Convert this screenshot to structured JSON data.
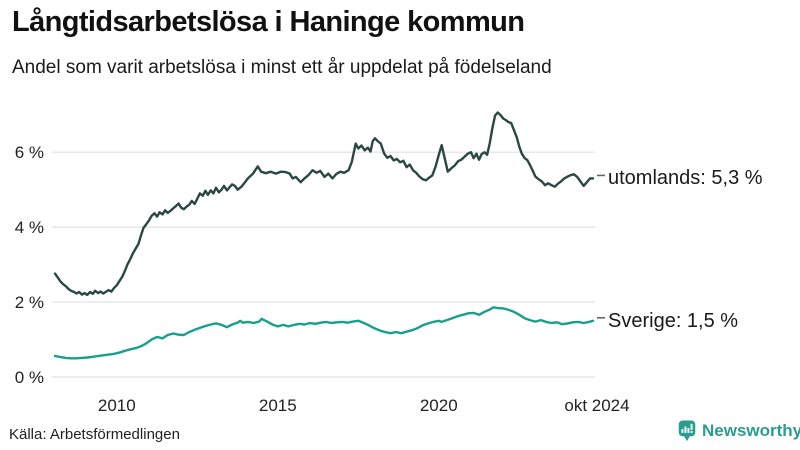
{
  "header": {
    "title": "Långtidsarbetslösa i Haninge kommun",
    "subtitle": "Andel som varit arbetslösa i minst ett år uppdelat på födelseland"
  },
  "chart_data": {
    "type": "line",
    "title": "Långtidsarbetslösa i Haninge kommun",
    "subtitle": "Andel som varit arbetslösa i minst ett år uppdelat på födelseland",
    "xlabel": "",
    "ylabel": "",
    "unit": "%",
    "xlim": [
      2008.08,
      2024.79
    ],
    "ylim": [
      0,
      7.3
    ],
    "grid": "horizontal-only",
    "legend_position": "right-of-line-end",
    "yticks": [
      {
        "label": "0 %",
        "value": 0
      },
      {
        "label": "2 %",
        "value": 2
      },
      {
        "label": "4 %",
        "value": 4
      },
      {
        "label": "6 %",
        "value": 6
      }
    ],
    "xticks": [
      {
        "label": "2010",
        "value": 2010
      },
      {
        "label": "2015",
        "value": 2015
      },
      {
        "label": "2020",
        "value": 2020
      },
      {
        "label": "okt 2024",
        "value": 2024.79
      }
    ],
    "series": [
      {
        "name": "utomlands",
        "label": "utomlands: 5,3 %",
        "last_value": 5.3,
        "color": "#2b4742",
        "points": [
          [
            2008.08,
            2.76
          ],
          [
            2008.17,
            2.65
          ],
          [
            2008.25,
            2.55
          ],
          [
            2008.33,
            2.48
          ],
          [
            2008.42,
            2.42
          ],
          [
            2008.5,
            2.35
          ],
          [
            2008.58,
            2.3
          ],
          [
            2008.67,
            2.27
          ],
          [
            2008.75,
            2.23
          ],
          [
            2008.83,
            2.27
          ],
          [
            2008.92,
            2.2
          ],
          [
            2009.0,
            2.24
          ],
          [
            2009.08,
            2.19
          ],
          [
            2009.17,
            2.27
          ],
          [
            2009.25,
            2.22
          ],
          [
            2009.33,
            2.3
          ],
          [
            2009.42,
            2.24
          ],
          [
            2009.5,
            2.28
          ],
          [
            2009.58,
            2.23
          ],
          [
            2009.67,
            2.28
          ],
          [
            2009.75,
            2.32
          ],
          [
            2009.83,
            2.28
          ],
          [
            2009.92,
            2.38
          ],
          [
            2010.0,
            2.45
          ],
          [
            2010.08,
            2.56
          ],
          [
            2010.17,
            2.68
          ],
          [
            2010.25,
            2.83
          ],
          [
            2010.33,
            3.0
          ],
          [
            2010.42,
            3.15
          ],
          [
            2010.5,
            3.3
          ],
          [
            2010.58,
            3.42
          ],
          [
            2010.67,
            3.55
          ],
          [
            2010.75,
            3.78
          ],
          [
            2010.83,
            3.98
          ],
          [
            2010.92,
            4.08
          ],
          [
            2011.0,
            4.18
          ],
          [
            2011.08,
            4.3
          ],
          [
            2011.17,
            4.37
          ],
          [
            2011.25,
            4.28
          ],
          [
            2011.33,
            4.4
          ],
          [
            2011.42,
            4.34
          ],
          [
            2011.5,
            4.45
          ],
          [
            2011.58,
            4.38
          ],
          [
            2011.67,
            4.44
          ],
          [
            2011.75,
            4.5
          ],
          [
            2011.83,
            4.56
          ],
          [
            2011.92,
            4.63
          ],
          [
            2012.0,
            4.52
          ],
          [
            2012.08,
            4.48
          ],
          [
            2012.17,
            4.55
          ],
          [
            2012.25,
            4.6
          ],
          [
            2012.33,
            4.7
          ],
          [
            2012.42,
            4.62
          ],
          [
            2012.5,
            4.76
          ],
          [
            2012.58,
            4.9
          ],
          [
            2012.67,
            4.84
          ],
          [
            2012.75,
            4.97
          ],
          [
            2012.83,
            4.86
          ],
          [
            2012.92,
            4.98
          ],
          [
            2013.0,
            4.9
          ],
          [
            2013.08,
            5.05
          ],
          [
            2013.17,
            4.93
          ],
          [
            2013.25,
            5.0
          ],
          [
            2013.33,
            5.1
          ],
          [
            2013.42,
            4.98
          ],
          [
            2013.5,
            5.06
          ],
          [
            2013.58,
            5.14
          ],
          [
            2013.67,
            5.1
          ],
          [
            2013.75,
            5.0
          ],
          [
            2013.87,
            5.08
          ],
          [
            2013.98,
            5.2
          ],
          [
            2014.07,
            5.3
          ],
          [
            2014.23,
            5.43
          ],
          [
            2014.38,
            5.62
          ],
          [
            2014.48,
            5.48
          ],
          [
            2014.63,
            5.44
          ],
          [
            2014.78,
            5.48
          ],
          [
            2014.94,
            5.43
          ],
          [
            2015.09,
            5.48
          ],
          [
            2015.25,
            5.47
          ],
          [
            2015.37,
            5.43
          ],
          [
            2015.46,
            5.3
          ],
          [
            2015.56,
            5.34
          ],
          [
            2015.71,
            5.2
          ],
          [
            2015.83,
            5.3
          ],
          [
            2015.95,
            5.39
          ],
          [
            2016.08,
            5.52
          ],
          [
            2016.2,
            5.45
          ],
          [
            2016.32,
            5.5
          ],
          [
            2016.45,
            5.34
          ],
          [
            2016.57,
            5.43
          ],
          [
            2016.7,
            5.3
          ],
          [
            2016.82,
            5.42
          ],
          [
            2016.94,
            5.48
          ],
          [
            2017.06,
            5.45
          ],
          [
            2017.2,
            5.52
          ],
          [
            2017.3,
            5.74
          ],
          [
            2017.42,
            6.23
          ],
          [
            2017.5,
            6.1
          ],
          [
            2017.6,
            6.18
          ],
          [
            2017.7,
            6.05
          ],
          [
            2017.8,
            6.12
          ],
          [
            2017.88,
            6.02
          ],
          [
            2017.95,
            6.3
          ],
          [
            2018.02,
            6.37
          ],
          [
            2018.1,
            6.3
          ],
          [
            2018.2,
            6.23
          ],
          [
            2018.3,
            5.97
          ],
          [
            2018.4,
            5.85
          ],
          [
            2018.5,
            5.9
          ],
          [
            2018.6,
            5.78
          ],
          [
            2018.7,
            5.82
          ],
          [
            2018.8,
            5.73
          ],
          [
            2018.9,
            5.77
          ],
          [
            2019.0,
            5.6
          ],
          [
            2019.1,
            5.67
          ],
          [
            2019.2,
            5.52
          ],
          [
            2019.3,
            5.45
          ],
          [
            2019.4,
            5.35
          ],
          [
            2019.5,
            5.28
          ],
          [
            2019.6,
            5.25
          ],
          [
            2019.7,
            5.32
          ],
          [
            2019.8,
            5.38
          ],
          [
            2019.9,
            5.62
          ],
          [
            2020.0,
            5.93
          ],
          [
            2020.09,
            6.19
          ],
          [
            2020.18,
            5.85
          ],
          [
            2020.28,
            5.48
          ],
          [
            2020.4,
            5.58
          ],
          [
            2020.5,
            5.65
          ],
          [
            2020.6,
            5.76
          ],
          [
            2020.7,
            5.8
          ],
          [
            2020.8,
            5.88
          ],
          [
            2020.9,
            5.96
          ],
          [
            2021.0,
            6.0
          ],
          [
            2021.08,
            5.84
          ],
          [
            2021.17,
            5.96
          ],
          [
            2021.25,
            5.8
          ],
          [
            2021.33,
            5.95
          ],
          [
            2021.42,
            6.0
          ],
          [
            2021.5,
            5.93
          ],
          [
            2021.58,
            6.22
          ],
          [
            2021.67,
            6.66
          ],
          [
            2021.75,
            6.98
          ],
          [
            2021.83,
            7.06
          ],
          [
            2021.92,
            6.99
          ],
          [
            2022.0,
            6.9
          ],
          [
            2022.08,
            6.86
          ],
          [
            2022.17,
            6.8
          ],
          [
            2022.25,
            6.78
          ],
          [
            2022.33,
            6.6
          ],
          [
            2022.42,
            6.4
          ],
          [
            2022.5,
            6.15
          ],
          [
            2022.58,
            5.96
          ],
          [
            2022.67,
            5.84
          ],
          [
            2022.75,
            5.79
          ],
          [
            2022.83,
            5.66
          ],
          [
            2022.92,
            5.5
          ],
          [
            2023.0,
            5.35
          ],
          [
            2023.1,
            5.28
          ],
          [
            2023.2,
            5.22
          ],
          [
            2023.3,
            5.12
          ],
          [
            2023.4,
            5.17
          ],
          [
            2023.5,
            5.12
          ],
          [
            2023.6,
            5.08
          ],
          [
            2023.7,
            5.16
          ],
          [
            2023.8,
            5.22
          ],
          [
            2023.9,
            5.3
          ],
          [
            2024.0,
            5.35
          ],
          [
            2024.1,
            5.39
          ],
          [
            2024.2,
            5.41
          ],
          [
            2024.3,
            5.34
          ],
          [
            2024.4,
            5.22
          ],
          [
            2024.5,
            5.1
          ],
          [
            2024.6,
            5.2
          ],
          [
            2024.7,
            5.3
          ],
          [
            2024.79,
            5.3
          ]
        ]
      },
      {
        "name": "Sverige",
        "label": "Sverige: 1,5 %",
        "last_value": 1.5,
        "color": "#17a08d",
        "points": [
          [
            2008.08,
            0.56
          ],
          [
            2008.25,
            0.53
          ],
          [
            2008.42,
            0.51
          ],
          [
            2008.58,
            0.5
          ],
          [
            2008.75,
            0.5
          ],
          [
            2008.92,
            0.51
          ],
          [
            2009.08,
            0.52
          ],
          [
            2009.25,
            0.54
          ],
          [
            2009.42,
            0.56
          ],
          [
            2009.58,
            0.58
          ],
          [
            2009.75,
            0.6
          ],
          [
            2009.92,
            0.62
          ],
          [
            2010.08,
            0.65
          ],
          [
            2010.25,
            0.7
          ],
          [
            2010.42,
            0.74
          ],
          [
            2010.58,
            0.77
          ],
          [
            2010.75,
            0.82
          ],
          [
            2010.92,
            0.9
          ],
          [
            2011.08,
            1.0
          ],
          [
            2011.25,
            1.07
          ],
          [
            2011.42,
            1.03
          ],
          [
            2011.58,
            1.12
          ],
          [
            2011.75,
            1.16
          ],
          [
            2011.92,
            1.13
          ],
          [
            2012.08,
            1.12
          ],
          [
            2012.25,
            1.2
          ],
          [
            2012.42,
            1.26
          ],
          [
            2012.58,
            1.31
          ],
          [
            2012.75,
            1.36
          ],
          [
            2012.92,
            1.4
          ],
          [
            2013.08,
            1.43
          ],
          [
            2013.25,
            1.39
          ],
          [
            2013.42,
            1.33
          ],
          [
            2013.58,
            1.4
          ],
          [
            2013.75,
            1.45
          ],
          [
            2013.83,
            1.5
          ],
          [
            2013.92,
            1.45
          ],
          [
            2014.08,
            1.47
          ],
          [
            2014.25,
            1.44
          ],
          [
            2014.42,
            1.48
          ],
          [
            2014.5,
            1.55
          ],
          [
            2014.67,
            1.48
          ],
          [
            2014.83,
            1.4
          ],
          [
            2015.0,
            1.35
          ],
          [
            2015.17,
            1.39
          ],
          [
            2015.33,
            1.35
          ],
          [
            2015.5,
            1.39
          ],
          [
            2015.67,
            1.42
          ],
          [
            2015.83,
            1.4
          ],
          [
            2016.0,
            1.44
          ],
          [
            2016.17,
            1.42
          ],
          [
            2016.33,
            1.45
          ],
          [
            2016.5,
            1.47
          ],
          [
            2016.67,
            1.44
          ],
          [
            2016.83,
            1.46
          ],
          [
            2017.0,
            1.47
          ],
          [
            2017.17,
            1.45
          ],
          [
            2017.33,
            1.48
          ],
          [
            2017.5,
            1.5
          ],
          [
            2017.67,
            1.44
          ],
          [
            2017.83,
            1.38
          ],
          [
            2018.0,
            1.3
          ],
          [
            2018.17,
            1.24
          ],
          [
            2018.33,
            1.2
          ],
          [
            2018.5,
            1.17
          ],
          [
            2018.67,
            1.2
          ],
          [
            2018.83,
            1.17
          ],
          [
            2019.0,
            1.21
          ],
          [
            2019.17,
            1.25
          ],
          [
            2019.33,
            1.3
          ],
          [
            2019.5,
            1.38
          ],
          [
            2019.67,
            1.43
          ],
          [
            2019.83,
            1.47
          ],
          [
            2020.0,
            1.5
          ],
          [
            2020.08,
            1.47
          ],
          [
            2020.25,
            1.52
          ],
          [
            2020.42,
            1.57
          ],
          [
            2020.58,
            1.62
          ],
          [
            2020.75,
            1.66
          ],
          [
            2020.92,
            1.7
          ],
          [
            2021.08,
            1.71
          ],
          [
            2021.25,
            1.66
          ],
          [
            2021.42,
            1.74
          ],
          [
            2021.58,
            1.8
          ],
          [
            2021.7,
            1.86
          ],
          [
            2021.83,
            1.84
          ],
          [
            2022.0,
            1.83
          ],
          [
            2022.17,
            1.79
          ],
          [
            2022.33,
            1.74
          ],
          [
            2022.5,
            1.66
          ],
          [
            2022.67,
            1.57
          ],
          [
            2022.83,
            1.52
          ],
          [
            2023.0,
            1.48
          ],
          [
            2023.17,
            1.52
          ],
          [
            2023.33,
            1.47
          ],
          [
            2023.5,
            1.44
          ],
          [
            2023.67,
            1.46
          ],
          [
            2023.83,
            1.41
          ],
          [
            2024.0,
            1.43
          ],
          [
            2024.17,
            1.46
          ],
          [
            2024.33,
            1.47
          ],
          [
            2024.5,
            1.44
          ],
          [
            2024.67,
            1.47
          ],
          [
            2024.79,
            1.5
          ]
        ]
      }
    ]
  },
  "footer": {
    "source": "Källa: Arbetsförmedlingen",
    "brand": "Newsworthy"
  },
  "colors": {
    "grid": "#e1e1e1",
    "text": "#1a1a1a",
    "connector": "#666666",
    "brand": "#2a9d8f"
  }
}
